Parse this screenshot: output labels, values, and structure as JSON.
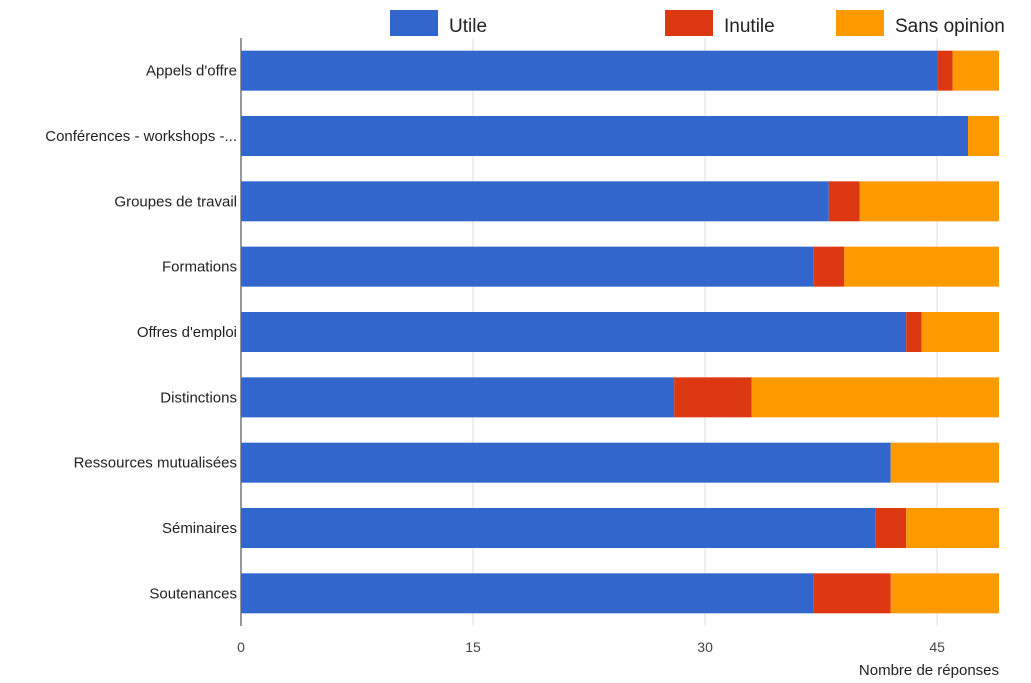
{
  "chart_data": {
    "type": "bar",
    "orientation": "horizontal",
    "stacked": true,
    "categories": [
      "Appels d'offre",
      "Conférences - workshops -...",
      "Groupes de travail",
      "Formations",
      "Offres d'emploi",
      "Distinctions",
      "Ressources mutualisées",
      "Séminaires",
      "Soutenances"
    ],
    "series": [
      {
        "name": "Utile",
        "color": "#3366cc",
        "values": [
          45,
          47,
          38,
          37,
          43,
          28,
          42,
          41,
          37
        ]
      },
      {
        "name": "Inutile",
        "color": "#dc3912",
        "values": [
          1,
          0,
          2,
          2,
          1,
          5,
          0,
          2,
          5
        ]
      },
      {
        "name": "Sans opinion",
        "color": "#ff9900",
        "values": [
          3,
          2,
          9,
          10,
          5,
          16,
          7,
          6,
          7
        ]
      }
    ],
    "xticks": [
      "0",
      "15",
      "30",
      "45"
    ],
    "xlim": [
      0,
      49
    ],
    "xlabel": "Nombre de réponses",
    "ylabel": "",
    "title": "",
    "grid": true,
    "legend_position": "top"
  }
}
